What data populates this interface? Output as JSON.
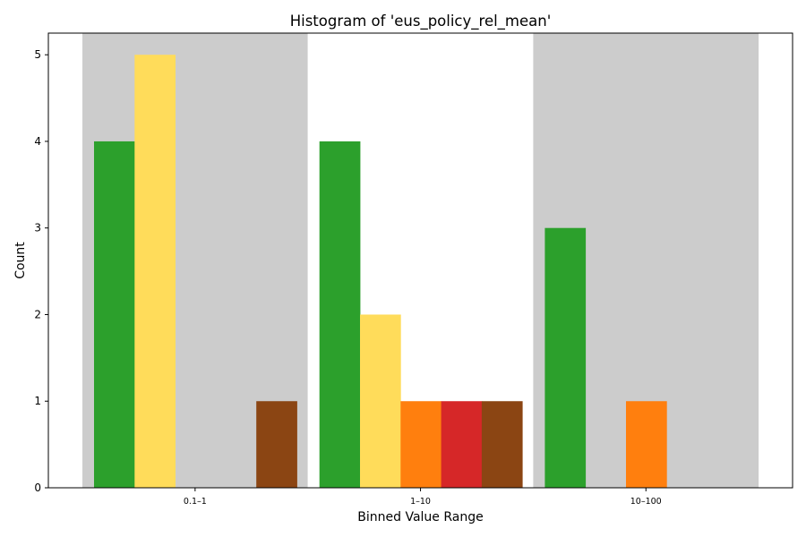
{
  "chart_data": {
    "type": "bar",
    "title": "Histogram of 'eus_policy_rel_mean'",
    "xlabel": "Binned Value Range",
    "ylabel": "Count",
    "categories": [
      "0.1–1",
      "1–10",
      "10–100"
    ],
    "series": [
      {
        "color": "#2ca02c",
        "values": [
          4,
          4,
          3
        ]
      },
      {
        "color": "#ffdc5a",
        "values": [
          5,
          2,
          0
        ]
      },
      {
        "color": "#ff7f0e",
        "values": [
          0,
          1,
          1
        ]
      },
      {
        "color": "#d62728",
        "values": [
          0,
          1,
          0
        ]
      },
      {
        "color": "#8b4513",
        "values": [
          1,
          1,
          0
        ]
      }
    ],
    "ylim": [
      0,
      5.25
    ],
    "yticks": [
      0,
      1,
      2,
      3,
      4,
      5
    ],
    "bin_background_colors": [
      "#cccccc",
      "#ffffff",
      "#cccccc"
    ],
    "grid": false,
    "legend": "none"
  }
}
